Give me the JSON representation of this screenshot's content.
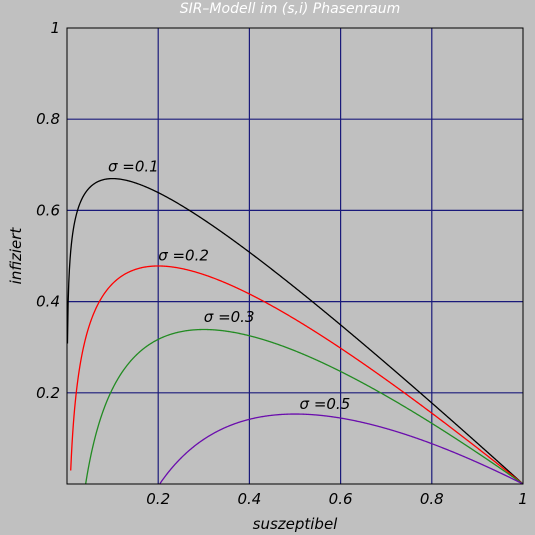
{
  "chart_data": {
    "type": "line",
    "title": "SIR–Modell im (s,i) Phasenraum",
    "xlabel": "suszeptibel",
    "ylabel": "infiziert",
    "xlim": [
      0,
      1
    ],
    "ylim": [
      0,
      1
    ],
    "xticks": [
      {
        "value": 0.2,
        "label": "0.2"
      },
      {
        "value": 0.4,
        "label": "0.4"
      },
      {
        "value": 0.6,
        "label": "0.6"
      },
      {
        "value": 0.8,
        "label": "0.8"
      },
      {
        "value": 1.0,
        "label": "1"
      }
    ],
    "yticks": [
      {
        "value": 0.2,
        "label": "0.2"
      },
      {
        "value": 0.4,
        "label": "0.4"
      },
      {
        "value": 0.6,
        "label": "0.6"
      },
      {
        "value": 0.8,
        "label": "0.8"
      },
      {
        "value": 1.0,
        "label": "1"
      }
    ],
    "grid": true,
    "series": [
      {
        "name": "σ =0.1",
        "sigma": 0.1,
        "color": "#000000",
        "label_at": {
          "x": 0.09,
          "y": 0.685
        }
      },
      {
        "name": "σ =0.2",
        "sigma": 0.2,
        "color": "#ff0000",
        "label_at": {
          "x": 0.2,
          "y": 0.49
        }
      },
      {
        "name": "σ =0.3",
        "sigma": 0.3,
        "color": "#228b22",
        "label_at": {
          "x": 0.3,
          "y": 0.355
        }
      },
      {
        "name": "σ =0.5",
        "sigma": 0.5,
        "color": "#6a0dad",
        "label_at": {
          "x": 0.51,
          "y": 0.165
        }
      }
    ]
  },
  "colors": {
    "background": "#c0c0c0",
    "grid": "#1a1a7a",
    "frame": "#000000"
  }
}
